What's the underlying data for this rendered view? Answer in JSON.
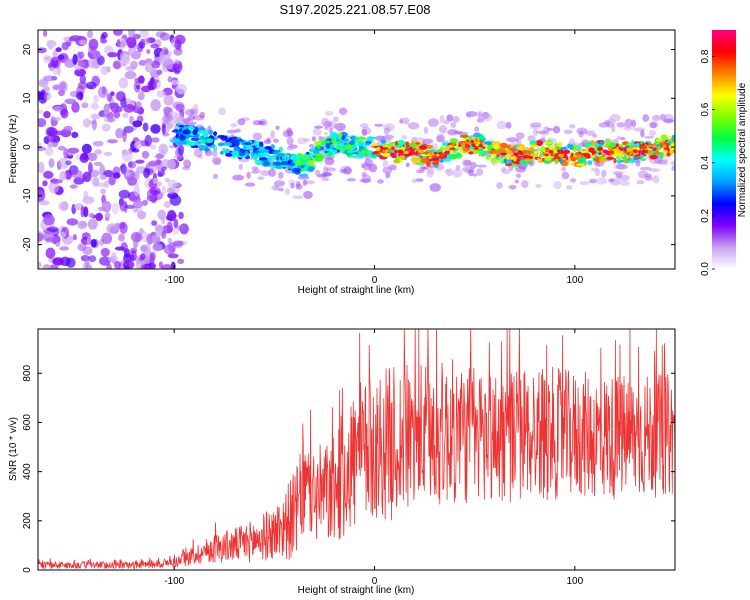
{
  "title": "S197.2025.221.08.57.E08",
  "chart_data": [
    {
      "type": "heatmap",
      "name": "spectrogram",
      "xlabel": "Height of straight line (km)",
      "ylabel": "Frequency (Hz)",
      "xlim": [
        -168,
        150
      ],
      "ylim": [
        -25,
        24
      ],
      "xticks": [
        -100,
        0,
        100
      ],
      "xtick_labels": [
        "-100",
        "0",
        "100"
      ],
      "yticks": [
        -20,
        -10,
        0,
        10,
        20
      ],
      "ytick_labels": [
        "-20",
        "-10",
        "0",
        "10",
        "20"
      ],
      "colorbar": {
        "label": "Normalized spectral amplitude",
        "range": [
          0.0,
          0.9
        ],
        "ticks": [
          0.0,
          0.2,
          0.4,
          0.6,
          0.8
        ],
        "tick_labels": [
          "0.0",
          "0.2",
          "0.4",
          "0.6",
          "0.8"
        ],
        "colormap": [
          "#ffffff",
          "#c8a0f0",
          "#8000ff",
          "#0000ff",
          "#00a0ff",
          "#00ffff",
          "#00ff40",
          "#80ff00",
          "#ffff00",
          "#ff8000",
          "#ff0000",
          "#ff0080"
        ]
      },
      "band_centerline": {
        "x": [
          -100,
          -90,
          -80,
          -70,
          -60,
          -50,
          -40,
          -35,
          -30,
          -25,
          -20,
          -10,
          0,
          10,
          20,
          30,
          40,
          50,
          60,
          70,
          80,
          90,
          100,
          110,
          120,
          130,
          140,
          150
        ],
        "y": [
          3,
          2,
          1,
          0,
          -1,
          -2,
          -3,
          -4,
          -2,
          0,
          1,
          0,
          0,
          -1,
          -1,
          -2,
          0,
          1,
          -1,
          -2,
          -1,
          -1,
          -2,
          -1,
          -1,
          -1,
          0,
          0
        ]
      }
    },
    {
      "type": "line",
      "name": "snr",
      "xlabel": "Height of straight line (km)",
      "ylabel": "SNR (10 * v/v)",
      "xlim": [
        -168,
        150
      ],
      "ylim": [
        0,
        980
      ],
      "xticks": [
        -100,
        0,
        100
      ],
      "xtick_labels": [
        "-100",
        "0",
        "100"
      ],
      "yticks": [
        0,
        200,
        400,
        600,
        800
      ],
      "ytick_labels": [
        "0",
        "200",
        "400",
        "600",
        "800"
      ],
      "color": "#ee3333",
      "envelope": {
        "x": [
          -168,
          -120,
          -100,
          -90,
          -80,
          -70,
          -60,
          -50,
          -40,
          -35,
          -30,
          -20,
          -15,
          -10,
          0,
          10,
          20,
          40,
          60,
          80,
          100,
          120,
          150
        ],
        "mean": [
          20,
          20,
          30,
          60,
          90,
          100,
          120,
          150,
          220,
          330,
          300,
          320,
          400,
          450,
          500,
          520,
          540,
          560,
          540,
          560,
          550,
          540,
          550
        ],
        "spread": [
          15,
          15,
          20,
          40,
          60,
          70,
          90,
          110,
          180,
          200,
          200,
          220,
          280,
          300,
          300,
          320,
          300,
          300,
          280,
          280,
          260,
          260,
          250
        ]
      }
    }
  ]
}
